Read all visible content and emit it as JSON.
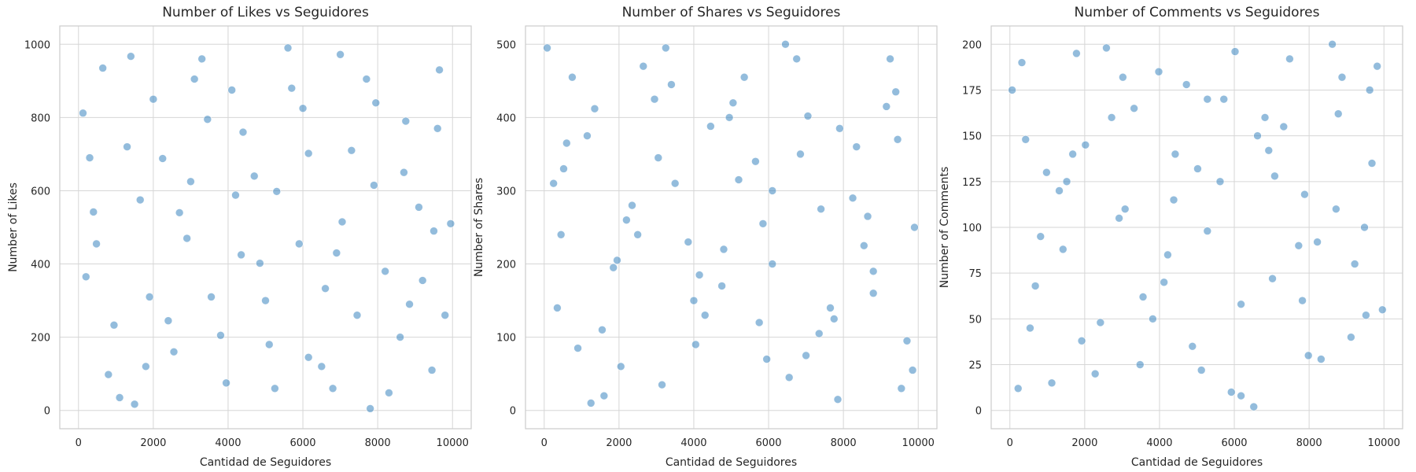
{
  "chart_data": [
    {
      "type": "scatter",
      "title": "Number of Likes vs Seguidores",
      "xlabel": "Cantidad de Seguidores",
      "ylabel": "Number of Likes",
      "xlim": [
        -500,
        10500
      ],
      "ylim": [
        -50,
        1050
      ],
      "xticks": [
        0,
        2000,
        4000,
        6000,
        8000,
        10000
      ],
      "yticks": [
        0,
        200,
        400,
        600,
        800,
        1000
      ],
      "grid": true,
      "x": [
        120,
        480,
        950,
        1400,
        1800,
        2250,
        2700,
        3100,
        3550,
        3950,
        4400,
        4850,
        5300,
        5700,
        6150,
        6600,
        7000,
        7450,
        7900,
        8300,
        8750,
        9200,
        9650,
        9950,
        300,
        1100,
        2000,
        2900,
        3800,
        4700,
        5600,
        6500,
        7300,
        8200,
        9100,
        9800,
        650,
        1650,
        2550,
        3450,
        4350,
        5250,
        6150,
        7050,
        7950,
        8850,
        9450,
        200,
        1300,
        2400,
        3300,
        4200,
        5100,
        6000,
        6900,
        7800,
        8700,
        9600,
        800,
        1900,
        3000,
        4100,
        5000,
        5900,
        6800,
        7700,
        8600,
        9500,
        400,
        1500
      ],
      "values": [
        812,
        455,
        233,
        967,
        120,
        688,
        540,
        905,
        310,
        75,
        760,
        402,
        598,
        880,
        145,
        333,
        972,
        260,
        615,
        48,
        790,
        355,
        930,
        510,
        690,
        35,
        850,
        470,
        205,
        640,
        990,
        120,
        710,
        380,
        555,
        260,
        935,
        575,
        160,
        795,
        425,
        60,
        702,
        515,
        840,
        290,
        110,
        365,
        720,
        245,
        960,
        588,
        180,
        825,
        430,
        5,
        650,
        770,
        98,
        310,
        625,
        875,
        300,
        455,
        60,
        905,
        200,
        490,
        542,
        17
      ]
    },
    {
      "type": "scatter",
      "title": "Number of Shares vs Seguidores",
      "xlabel": "Cantidad de Seguidores",
      "ylabel": "Number of Shares",
      "xlim": [
        -500,
        10500
      ],
      "ylim": [
        -25,
        525
      ],
      "xticks": [
        0,
        2000,
        4000,
        6000,
        8000,
        10000
      ],
      "yticks": [
        0,
        100,
        200,
        300,
        400,
        500
      ],
      "grid": true,
      "x": [
        80,
        520,
        900,
        1350,
        1850,
        2200,
        2650,
        3150,
        3500,
        4000,
        4450,
        4800,
        5350,
        5750,
        6100,
        6550,
        7050,
        7400,
        7850,
        8350,
        8800,
        9250,
        9700,
        9900,
        350,
        1150,
        2050,
        2950,
        3850,
        4750,
        5650,
        6450,
        7350,
        8250,
        9150,
        9850,
        600,
        1600,
        2500,
        3400,
        4300,
        5200,
        6100,
        7000,
        7900,
        8800,
        9400,
        250,
        1250,
        2350,
        3250,
        4150,
        5050,
        5950,
        6850,
        7750,
        8650,
        9550,
        750,
        1950,
        3050,
        4050,
        4950,
        5850,
        6750,
        7650,
        8550,
        9450,
        450,
        1550
      ],
      "values": [
        495,
        330,
        85,
        412,
        195,
        260,
        470,
        35,
        310,
        150,
        388,
        220,
        455,
        120,
        300,
        45,
        402,
        275,
        15,
        360,
        190,
        480,
        95,
        250,
        140,
        375,
        60,
        425,
        230,
        170,
        340,
        500,
        105,
        290,
        415,
        55,
        365,
        20,
        240,
        445,
        130,
        315,
        200,
        75,
        385,
        160,
        435,
        310,
        10,
        280,
        495,
        185,
        420,
        70,
        350,
        125,
        265,
        30,
        455,
        205,
        345,
        90,
        400,
        255,
        480,
        140,
        225,
        370,
        240,
        110
      ]
    },
    {
      "type": "scatter",
      "title": "Number of Comments vs Seguidores",
      "xlabel": "Cantidad de Seguidores",
      "ylabel": "Number of Comments",
      "xlim": [
        -500,
        10500
      ],
      "ylim": [
        -10,
        210
      ],
      "xticks": [
        0,
        2000,
        4000,
        6000,
        8000,
        10000
      ],
      "yticks": [
        0,
        25,
        50,
        75,
        100,
        125,
        150,
        175,
        200
      ],
      "grid": true,
      "x": [
        60,
        540,
        980,
        1420,
        1780,
        2280,
        2720,
        3080,
        3560,
        3980,
        4420,
        4880,
        5280,
        5720,
        6180,
        6620,
        7020,
        7480,
        7880,
        8320,
        8780,
        9220,
        9680,
        9960,
        320,
        1120,
        2020,
        2920,
        3820,
        4720,
        5620,
        6520,
        7320,
        8220,
        9120,
        9820,
        680,
        1680,
        2580,
        3480,
        4380,
        5280,
        6180,
        7080,
        7980,
        8880,
        9480,
        220,
        1320,
        2420,
        3320,
        4220,
        5120,
        6020,
        6920,
        7820,
        8720,
        9620,
        820,
        1920,
        3020,
        4120,
        5020,
        5920,
        6820,
        7720,
        8620,
        9520,
        420,
        1520
      ],
      "values": [
        175,
        45,
        130,
        88,
        195,
        20,
        160,
        110,
        62,
        185,
        140,
        35,
        98,
        170,
        8,
        150,
        72,
        192,
        118,
        28,
        162,
        80,
        135,
        55,
        190,
        15,
        145,
        105,
        50,
        178,
        125,
        2,
        155,
        92,
        40,
        188,
        68,
        140,
        198,
        25,
        115,
        170,
        58,
        128,
        30,
        182,
        100,
        12,
        120,
        48,
        165,
        85,
        22,
        196,
        142,
        60,
        110,
        175,
        95,
        38,
        182,
        70,
        132,
        10,
        160,
        90,
        200,
        52,
        148,
        125
      ]
    }
  ]
}
